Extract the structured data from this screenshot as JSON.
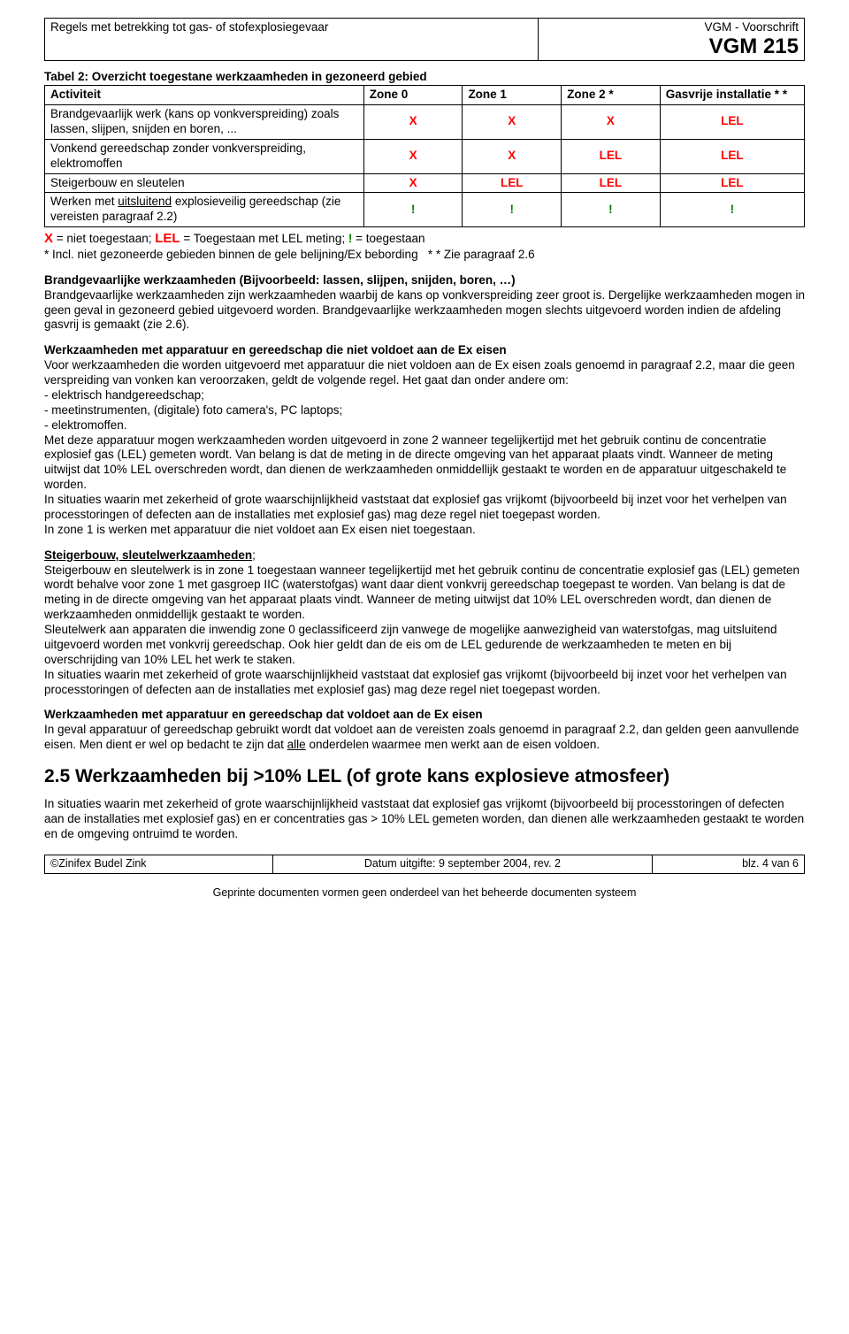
{
  "header": {
    "left": "Regels met betrekking tot gas- of stofexplosiegevaar",
    "right_small": "VGM - Voorschrift",
    "right_code": "VGM 215"
  },
  "table2": {
    "title": "Tabel 2: Overzicht toegestane werkzaamheden in gezoneerd gebied",
    "headers": {
      "activiteit": "Activiteit",
      "z0": "Zone 0",
      "z1": "Zone 1",
      "z2": "Zone 2  *",
      "gas": "Gasvrije installatie * *"
    },
    "rows": [
      {
        "act": "Brandgevaarlijk werk (kans op vonkverspreiding) zoals lassen, slijpen, snijden en boren, ...",
        "c": [
          "X",
          "X",
          "X",
          "LEL"
        ],
        "cls": [
          "red",
          "red",
          "red",
          "red"
        ]
      },
      {
        "act": "Vonkend gereedschap zonder vonkverspreiding, elektromoffen",
        "c": [
          "X",
          "X",
          "LEL",
          "LEL"
        ],
        "cls": [
          "red",
          "red",
          "red",
          "red"
        ]
      },
      {
        "act": "Steigerbouw en sleutelen",
        "c": [
          "X",
          "LEL",
          "LEL",
          "LEL"
        ],
        "cls": [
          "red",
          "red",
          "red",
          "red"
        ]
      },
      {
        "act_html": "Werken met <u>uitsluitend</u> explosieveilig gereedschap (zie vereisten paragraaf 2.2)",
        "c": [
          "!",
          "!",
          "!",
          "!"
        ],
        "cls": [
          "green",
          "green",
          "green",
          "green"
        ]
      }
    ],
    "legend_html": "<span class='red red-big'>X</span> = niet toegestaan; <span class='red red-big'>LEL</span> = Toegestaan met LEL meting; <span class='green'>!</span> = toegestaan<br>* Incl. niet gezoneerde gebieden binnen de gele belijning/Ex bebording&nbsp;&nbsp; * * Zie paragraaf 2.6"
  },
  "body": {
    "p1_title": "Brandgevaarlijke werkzaamheden (Bijvoorbeeld: lassen, slijpen, snijden, boren, …)",
    "p1": "Brandgevaarlijke werkzaamheden zijn werkzaamheden waarbij de kans op vonkverspreiding zeer groot is. Dergelijke werkzaamheden mogen in geen geval in gezoneerd gebied uitgevoerd worden. Brandgevaarlijke werkzaamheden mogen slechts uitgevoerd worden indien de afdeling gasvrij is gemaakt (zie 2.6).",
    "p2_title": "Werkzaamheden met apparatuur en gereedschap die niet voldoet aan de Ex eisen",
    "p2a": "Voor werkzaamheden die worden uitgevoerd met apparatuur die niet voldoen aan de Ex eisen zoals genoemd in paragraaf 2.2, maar die geen verspreiding van vonken kan veroorzaken, geldt de volgende regel. Het gaat dan onder andere om:",
    "p2list": [
      "- elektrisch handgereedschap;",
      "- meetinstrumenten, (digitale) foto camera's, PC laptops;",
      "- elektromoffen."
    ],
    "p2b": "Met deze apparatuur mogen werkzaamheden worden uitgevoerd in zone 2 wanneer tegelijkertijd met het gebruik continu de concentratie explosief gas (LEL) gemeten wordt. Van belang is dat de meting in de directe omgeving van het apparaat plaats vindt. Wanneer de meting uitwijst dat 10% LEL overschreden wordt, dan dienen de werkzaamheden onmiddellijk gestaakt te worden en de apparatuur uitgeschakeld te worden.",
    "p2c": "In situaties waarin met zekerheid of grote waarschijnlijkheid vaststaat dat explosief gas vrijkomt (bijvoorbeeld bij inzet voor het verhelpen van processtoringen of defecten aan de installaties met explosief gas) mag deze regel niet toegepast worden.",
    "p2d": "In zone 1 is werken met apparatuur die niet voldoet aan Ex eisen niet toegestaan.",
    "p3_title": "Steigerbouw, sleutelwerkzaamheden",
    "p3a": "Steigerbouw en sleutelwerk is in zone 1 toegestaan wanneer tegelijkertijd met het gebruik continu de concentratie explosief gas (LEL) gemeten wordt behalve voor zone 1 met gasgroep IIC (waterstofgas) want daar dient vonkvrij gereedschap toegepast te worden. Van belang is dat de meting in de directe omgeving van het apparaat plaats vindt. Wanneer de meting uitwijst dat 10% LEL overschreden wordt, dan dienen de werkzaamheden onmiddellijk gestaakt te worden.",
    "p3b": "Sleutelwerk aan apparaten die inwendig zone 0 geclassificeerd zijn vanwege de mogelijke aanwezigheid van waterstofgas, mag uitsluitend uitgevoerd worden met vonkvrij gereedschap. Ook hier geldt dan de eis om de LEL gedurende de werkzaamheden te meten en bij overschrijding van 10% LEL het werk te staken.",
    "p3c": "In situaties waarin met zekerheid of grote waarschijnlijkheid vaststaat dat explosief gas vrijkomt (bijvoorbeeld bij inzet voor het verhelpen van processtoringen of defecten aan de installaties met explosief gas) mag deze regel niet toegepast worden.",
    "p4_title": "Werkzaamheden met apparatuur en gereedschap dat voldoet aan de Ex eisen",
    "p4_html": "In geval apparatuur of gereedschap gebruikt wordt dat voldoet aan de vereisten zoals genoemd in paragraaf 2.2, dan gelden geen aanvullende eisen. Men dient er wel op bedacht te zijn dat <u>alle</u> onderdelen waarmee men werkt aan de eisen voldoen.",
    "sec25": "2.5  Werkzaamheden bij >10% LEL (of grote kans explosieve atmosfeer)",
    "p5": "In situaties waarin met zekerheid of grote waarschijnlijkheid vaststaat dat explosief gas vrijkomt (bijvoorbeeld bij processtoringen of defecten aan de installaties met explosief gas) en er concentraties gas > 10% LEL gemeten worden, dan dienen alle werkzaamheden gestaakt te worden en de omgeving ontruimd te worden."
  },
  "footer": {
    "left": "©Zinifex Budel Zink",
    "center": "Datum uitgifte: 9 september 2004, rev. 2",
    "right": "blz. 4 van 6",
    "note": "Geprinte documenten vormen geen onderdeel van het beheerde documenten systeem"
  },
  "colors": {
    "red": "#ff0000",
    "green": "#008000",
    "text": "#000000",
    "bg": "#ffffff",
    "border": "#000000"
  }
}
